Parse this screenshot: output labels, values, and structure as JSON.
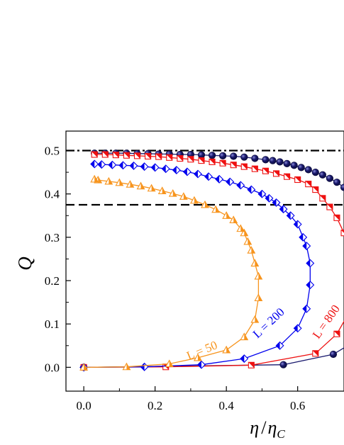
{
  "chart_data": {
    "type": "line",
    "xlabel_parts": [
      "η",
      "/",
      "η",
      "C"
    ],
    "ylabel": "Q",
    "xlim": [
      -0.05,
      0.73
    ],
    "ylim": [
      -0.055,
      0.545
    ],
    "x_ticks": [
      "0.0",
      "0.2",
      "0.4",
      "0.6"
    ],
    "x_tick_values": [
      0.0,
      0.2,
      0.4,
      0.6
    ],
    "y_ticks": [
      "0.0",
      "0.1",
      "0.2",
      "0.3",
      "0.4",
      "0.5"
    ],
    "y_tick_values": [
      0.0,
      0.1,
      0.2,
      0.3,
      0.4,
      0.5
    ],
    "grid": false,
    "reference_lines": [
      {
        "y": 0.5,
        "style": "dash-dot",
        "color": "#000000"
      },
      {
        "y": 0.375,
        "style": "dashed",
        "color": "#000000"
      }
    ],
    "series": [
      {
        "name": "L = 50",
        "color": "#f7941d",
        "marker": "triangle",
        "x": [
          0.0,
          0.12,
          0.24,
          0.32,
          0.4,
          0.45,
          0.48,
          0.49,
          0.49,
          0.48,
          0.47,
          0.46,
          0.45,
          0.44,
          0.42,
          0.4,
          0.37,
          0.34,
          0.31,
          0.28,
          0.25,
          0.22,
          0.19,
          0.16,
          0.13,
          0.1,
          0.07,
          0.04,
          0.03
        ],
        "y": [
          0.0,
          0.001,
          0.008,
          0.022,
          0.04,
          0.07,
          0.11,
          0.16,
          0.21,
          0.24,
          0.27,
          0.29,
          0.31,
          0.32,
          0.34,
          0.35,
          0.364,
          0.375,
          0.385,
          0.394,
          0.401,
          0.407,
          0.413,
          0.418,
          0.422,
          0.426,
          0.429,
          0.432,
          0.434
        ]
      },
      {
        "name": "L = 200",
        "color": "#0000ee",
        "marker": "diamond",
        "x": [
          0.0,
          0.17,
          0.33,
          0.45,
          0.55,
          0.6,
          0.625,
          0.635,
          0.635,
          0.625,
          0.615,
          0.6,
          0.58,
          0.56,
          0.54,
          0.52,
          0.5,
          0.47,
          0.44,
          0.41,
          0.38,
          0.35,
          0.32,
          0.29,
          0.26,
          0.23,
          0.2,
          0.17,
          0.14,
          0.11,
          0.08,
          0.05,
          0.03
        ],
        "y": [
          0.0,
          0.001,
          0.006,
          0.02,
          0.05,
          0.09,
          0.135,
          0.19,
          0.24,
          0.28,
          0.3,
          0.33,
          0.35,
          0.365,
          0.38,
          0.39,
          0.4,
          0.41,
          0.42,
          0.428,
          0.434,
          0.44,
          0.446,
          0.451,
          0.455,
          0.458,
          0.461,
          0.463,
          0.465,
          0.466,
          0.467,
          0.468,
          0.469
        ]
      },
      {
        "name": "L = 800",
        "color": "#ee1111",
        "marker": "square",
        "x": [
          0.0,
          0.23,
          0.47,
          0.65,
          0.71,
          0.75,
          0.75,
          0.73,
          0.71,
          0.69,
          0.67,
          0.65,
          0.63,
          0.6,
          0.57,
          0.54,
          0.51,
          0.48,
          0.45,
          0.42,
          0.39,
          0.36,
          0.33,
          0.3,
          0.27,
          0.24,
          0.21,
          0.18,
          0.15,
          0.12,
          0.09,
          0.06,
          0.03
        ],
        "y": [
          0.0,
          0.001,
          0.005,
          0.032,
          0.077,
          0.135,
          0.26,
          0.31,
          0.345,
          0.37,
          0.39,
          0.41,
          0.423,
          0.433,
          0.44,
          0.447,
          0.453,
          0.458,
          0.463,
          0.467,
          0.471,
          0.474,
          0.477,
          0.48,
          0.482,
          0.484,
          0.486,
          0.487,
          0.488,
          0.489,
          0.49,
          0.491,
          0.491
        ]
      },
      {
        "name": "",
        "color": "#1a1a6e",
        "marker": "circle",
        "x": [
          0.0,
          0.56,
          0.7,
          0.76,
          0.73,
          0.71,
          0.69,
          0.67,
          0.65,
          0.63,
          0.61,
          0.59,
          0.57,
          0.55,
          0.53,
          0.51,
          0.48,
          0.45,
          0.42,
          0.39,
          0.36,
          0.33,
          0.3,
          0.27,
          0.24,
          0.21,
          0.18,
          0.15,
          0.12,
          0.09,
          0.06,
          0.03
        ],
        "y": [
          0.0,
          0.006,
          0.03,
          0.06,
          0.415,
          0.427,
          0.436,
          0.444,
          0.45,
          0.456,
          0.461,
          0.466,
          0.47,
          0.474,
          0.477,
          0.479,
          0.482,
          0.485,
          0.487,
          0.488,
          0.489,
          0.49,
          0.491,
          0.491,
          0.492,
          0.492,
          0.493,
          0.493,
          0.494,
          0.494,
          0.494,
          0.494
        ]
      }
    ]
  }
}
